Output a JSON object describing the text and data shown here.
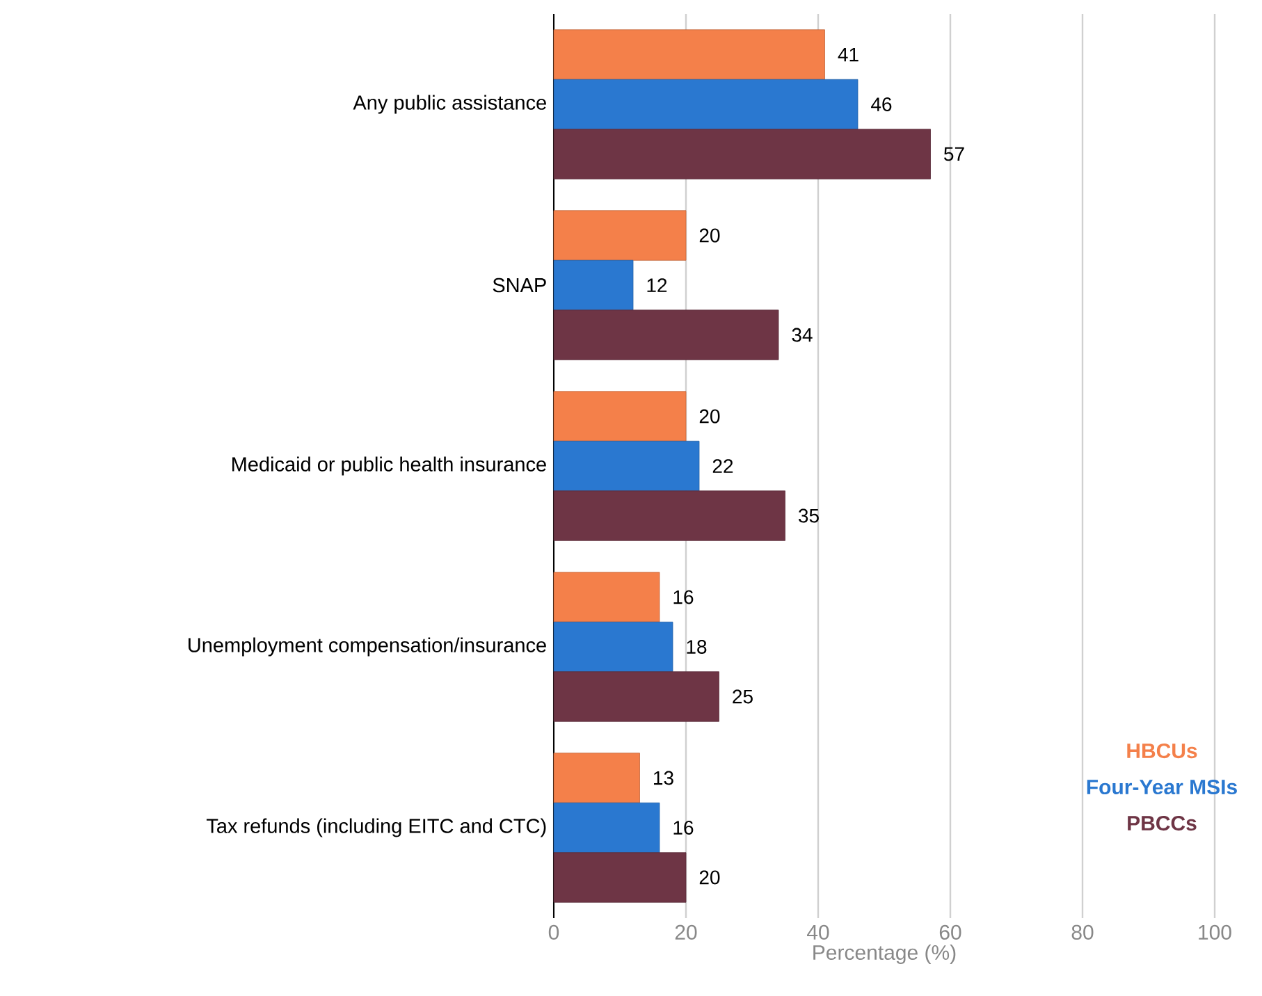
{
  "chart_data": {
    "type": "bar",
    "orientation": "horizontal",
    "xlabel": "Percentage (%)",
    "categories": [
      "Any public assistance",
      "SNAP",
      "Medicaid or public health insurance",
      "Unemployment compensation/insurance",
      "Tax refunds (including EITC and CTC)"
    ],
    "series": [
      {
        "name": "HBCUs",
        "color": "#f4804a",
        "values": [
          41,
          20,
          20,
          16,
          13
        ]
      },
      {
        "name": "Four-Year MSIs",
        "color": "#2a78d0",
        "values": [
          46,
          12,
          22,
          18,
          16
        ]
      },
      {
        "name": "PBCCs",
        "color": "#6e3545",
        "values": [
          57,
          34,
          35,
          25,
          20
        ]
      }
    ],
    "xlim": [
      0,
      100
    ],
    "xticks": [
      0,
      20,
      40,
      60,
      80,
      100
    ],
    "grid": "x",
    "legend": "right",
    "data_labels": true
  }
}
